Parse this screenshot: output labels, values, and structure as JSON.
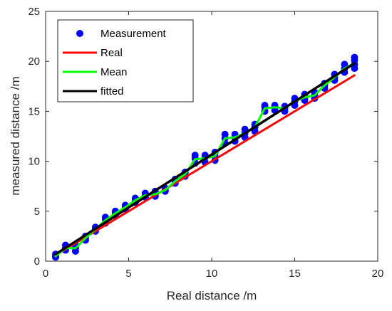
{
  "chart_data": {
    "type": "scatter",
    "xlabel": "Real distance /m",
    "ylabel": "measured distance /m",
    "xlim": [
      0,
      20
    ],
    "ylim": [
      0,
      25
    ],
    "xticks": [
      0,
      5,
      10,
      15,
      20
    ],
    "yticks": [
      0,
      5,
      10,
      15,
      20,
      25
    ],
    "grid": false,
    "legend_position": "top-left",
    "series": [
      {
        "name": "Measurement",
        "kind": "markers",
        "color": "#0000ff",
        "points": [
          [
            0.6,
            0.4
          ],
          [
            0.6,
            0.7
          ],
          [
            0.6,
            0.5
          ],
          [
            1.2,
            1.3
          ],
          [
            1.2,
            1.6
          ],
          [
            1.2,
            1.1
          ],
          [
            1.8,
            1.0
          ],
          [
            1.8,
            1.3
          ],
          [
            1.8,
            1.6
          ],
          [
            2.4,
            2.1
          ],
          [
            2.4,
            2.5
          ],
          [
            2.4,
            2.3
          ],
          [
            3.0,
            3.0
          ],
          [
            3.0,
            3.4
          ],
          [
            3.0,
            3.2
          ],
          [
            3.6,
            3.8
          ],
          [
            3.6,
            4.2
          ],
          [
            3.6,
            4.4
          ],
          [
            4.2,
            4.6
          ],
          [
            4.2,
            5.0
          ],
          [
            4.2,
            4.8
          ],
          [
            4.8,
            5.2
          ],
          [
            4.8,
            5.6
          ],
          [
            4.8,
            5.4
          ],
          [
            5.4,
            5.9
          ],
          [
            5.4,
            6.3
          ],
          [
            5.4,
            6.1
          ],
          [
            6.0,
            6.4
          ],
          [
            6.0,
            6.8
          ],
          [
            6.0,
            6.6
          ],
          [
            6.6,
            6.5
          ],
          [
            6.6,
            7.0
          ],
          [
            6.6,
            6.7
          ],
          [
            7.2,
            7.0
          ],
          [
            7.2,
            7.3
          ],
          [
            7.2,
            7.1
          ],
          [
            7.8,
            7.8
          ],
          [
            7.8,
            8.2
          ],
          [
            7.8,
            8.0
          ],
          [
            8.4,
            8.5
          ],
          [
            8.4,
            8.9
          ],
          [
            8.4,
            8.7
          ],
          [
            9.0,
            9.8
          ],
          [
            9.0,
            10.3
          ],
          [
            9.0,
            10.6
          ],
          [
            9.6,
            9.9
          ],
          [
            9.6,
            10.4
          ],
          [
            9.6,
            10.6
          ],
          [
            10.2,
            10.1
          ],
          [
            10.2,
            10.5
          ],
          [
            10.2,
            10.9
          ],
          [
            10.8,
            11.8
          ],
          [
            10.8,
            12.3
          ],
          [
            10.8,
            12.7
          ],
          [
            11.4,
            12.0
          ],
          [
            11.4,
            12.4
          ],
          [
            11.4,
            12.7
          ],
          [
            12.0,
            12.4
          ],
          [
            12.0,
            12.8
          ],
          [
            12.0,
            13.2
          ],
          [
            12.6,
            13.0
          ],
          [
            12.6,
            13.4
          ],
          [
            12.6,
            13.7
          ],
          [
            13.2,
            15.0
          ],
          [
            13.2,
            15.4
          ],
          [
            13.2,
            15.6
          ],
          [
            13.8,
            15.1
          ],
          [
            13.8,
            15.4
          ],
          [
            13.8,
            15.6
          ],
          [
            14.4,
            15.0
          ],
          [
            14.4,
            15.3
          ],
          [
            14.4,
            15.5
          ],
          [
            15.0,
            15.6
          ],
          [
            15.0,
            16.0
          ],
          [
            15.0,
            16.3
          ],
          [
            15.6,
            16.1
          ],
          [
            15.6,
            16.4
          ],
          [
            15.6,
            16.7
          ],
          [
            16.2,
            16.3
          ],
          [
            16.2,
            16.6
          ],
          [
            16.2,
            16.9
          ],
          [
            16.8,
            17.3
          ],
          [
            16.8,
            17.6
          ],
          [
            16.8,
            17.8
          ],
          [
            17.4,
            18.1
          ],
          [
            17.4,
            18.4
          ],
          [
            17.4,
            18.7
          ],
          [
            18.0,
            18.9
          ],
          [
            18.0,
            19.3
          ],
          [
            18.0,
            19.7
          ],
          [
            18.6,
            19.3
          ],
          [
            18.6,
            19.7
          ],
          [
            18.6,
            20.1
          ],
          [
            18.6,
            20.4
          ]
        ]
      },
      {
        "name": "Real",
        "kind": "line",
        "color": "#ff0000",
        "points": [
          [
            0.6,
            0.6
          ],
          [
            18.6,
            18.6
          ]
        ]
      },
      {
        "name": "Mean",
        "kind": "line",
        "color": "#00ff00",
        "points": [
          [
            0.6,
            0.5
          ],
          [
            1.2,
            1.3
          ],
          [
            1.8,
            1.3
          ],
          [
            2.4,
            2.3
          ],
          [
            3.0,
            3.2
          ],
          [
            3.6,
            4.1
          ],
          [
            4.2,
            4.8
          ],
          [
            4.8,
            5.4
          ],
          [
            5.4,
            6.1
          ],
          [
            6.0,
            6.6
          ],
          [
            6.6,
            6.7
          ],
          [
            7.2,
            7.1
          ],
          [
            7.8,
            8.0
          ],
          [
            8.4,
            8.7
          ],
          [
            9.0,
            10.2
          ],
          [
            9.6,
            10.3
          ],
          [
            10.2,
            10.5
          ],
          [
            10.8,
            12.3
          ],
          [
            11.4,
            12.4
          ],
          [
            12.0,
            12.8
          ],
          [
            12.6,
            13.4
          ],
          [
            13.2,
            15.3
          ],
          [
            13.8,
            15.4
          ],
          [
            14.4,
            15.3
          ],
          [
            15.0,
            16.0
          ],
          [
            15.6,
            16.4
          ],
          [
            16.2,
            16.6
          ],
          [
            16.8,
            17.6
          ],
          [
            17.4,
            18.4
          ],
          [
            18.0,
            19.3
          ],
          [
            18.6,
            19.8
          ]
        ]
      },
      {
        "name": "fitted",
        "kind": "line",
        "color": "#000000",
        "points": [
          [
            0.6,
            0.7
          ],
          [
            18.6,
            19.8
          ]
        ]
      }
    ]
  }
}
